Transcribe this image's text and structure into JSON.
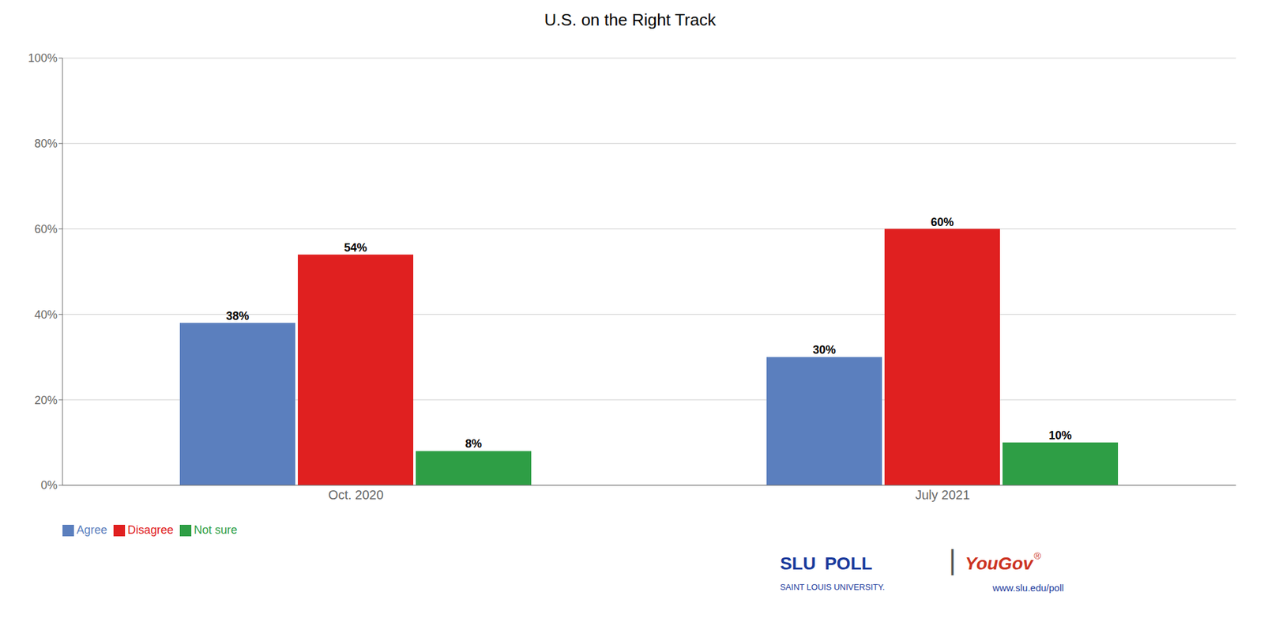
{
  "chart_data": {
    "type": "bar",
    "title": "U.S. on the Right Track",
    "categories": [
      "Oct. 2020",
      "July 2021"
    ],
    "series": [
      {
        "name": "Agree",
        "color": "#5b7fbe",
        "values": [
          38,
          30
        ],
        "value_labels": [
          "38%",
          "30%"
        ]
      },
      {
        "name": "Disagree",
        "color": "#e02020",
        "values": [
          54,
          60
        ],
        "value_labels": [
          "54%",
          "60%"
        ]
      },
      {
        "name": "Not sure",
        "color": "#2e9e45",
        "values": [
          8,
          10
        ],
        "value_labels": [
          "8%",
          "10%"
        ]
      }
    ],
    "ylim": [
      0,
      100
    ],
    "yticks": [
      {
        "value": 0,
        "label": "0%"
      },
      {
        "value": 20,
        "label": "20%"
      },
      {
        "value": 40,
        "label": "40%"
      },
      {
        "value": 60,
        "label": "60%"
      },
      {
        "value": 80,
        "label": "80%"
      },
      {
        "value": 100,
        "label": "100%"
      }
    ],
    "grid": true,
    "legend": "bottom-left",
    "data_labels": true,
    "annotations": [
      {
        "text": "SLU",
        "color": "#1a3a9c"
      },
      {
        "text": "POLL",
        "color": "#1a3a9c"
      },
      {
        "text": "SAINT LOUIS UNIVERSITY.",
        "color": "#1a3a9c"
      },
      {
        "text": "|",
        "color": "#555555"
      },
      {
        "text": "YouGov",
        "color": "#cc3322"
      },
      {
        "text": "®",
        "color": "#cc3322"
      },
      {
        "text": "www.slu.edu/poll",
        "color": "#1a3a9c"
      }
    ]
  }
}
